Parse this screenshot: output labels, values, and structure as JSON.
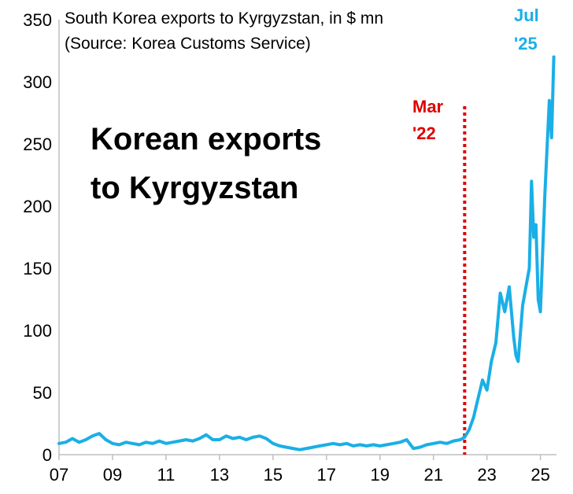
{
  "chart_data": {
    "type": "line",
    "subtitle_lines": [
      "South Korea exports to Kyrgyzstan, in $ mn",
      "(Source: Korea Customs Service)"
    ],
    "headline_lines": [
      "Korean exports",
      "to Kyrgyzstan"
    ],
    "xlabel": "",
    "ylabel": "",
    "y_ticks": [
      0,
      50,
      100,
      150,
      200,
      250,
      300,
      350
    ],
    "x_ticks": [
      "07",
      "09",
      "11",
      "13",
      "15",
      "17",
      "19",
      "21",
      "23",
      "25"
    ],
    "ylim": [
      0,
      350
    ],
    "grid": false,
    "legend": "none",
    "series_color": "#1AAFE6",
    "marker": {
      "date": "2022-03",
      "label_lines": [
        "Mar",
        "'22"
      ],
      "color": "#E00000",
      "style": "dotted"
    },
    "end_label": {
      "label_lines": [
        "Jul",
        "'25"
      ],
      "color": "#1AAFE6"
    },
    "series": [
      {
        "x": [
          "2007-01",
          "2007-04",
          "2007-07",
          "2007-10",
          "2008-01",
          "2008-04",
          "2008-07",
          "2008-10",
          "2009-01",
          "2009-04",
          "2009-07",
          "2009-10",
          "2010-01",
          "2010-04",
          "2010-07",
          "2010-10",
          "2011-01",
          "2011-04",
          "2011-07",
          "2011-10",
          "2012-01",
          "2012-04",
          "2012-07",
          "2012-10",
          "2013-01",
          "2013-04",
          "2013-07",
          "2013-10",
          "2014-01",
          "2014-04",
          "2014-07",
          "2014-10",
          "2015-01",
          "2015-04",
          "2015-07",
          "2015-10",
          "2016-01",
          "2016-04",
          "2016-07",
          "2016-10",
          "2017-01",
          "2017-04",
          "2017-07",
          "2017-10",
          "2018-01",
          "2018-04",
          "2018-07",
          "2018-10",
          "2019-01",
          "2019-04",
          "2019-07",
          "2019-10",
          "2020-01",
          "2020-04",
          "2020-07",
          "2020-10",
          "2021-01",
          "2021-04",
          "2021-07",
          "2021-10",
          "2022-01",
          "2022-03",
          "2022-05",
          "2022-07",
          "2022-09",
          "2022-11",
          "2023-01",
          "2023-03",
          "2023-05",
          "2023-07",
          "2023-09",
          "2023-11",
          "2024-01",
          "2024-02",
          "2024-03",
          "2024-05",
          "2024-07",
          "2024-08",
          "2024-09",
          "2024-10",
          "2024-11",
          "2024-12",
          "2025-01",
          "2025-03",
          "2025-05",
          "2025-06",
          "2025-07"
        ],
        "y": [
          9,
          10,
          13,
          10,
          12,
          15,
          17,
          12,
          9,
          8,
          10,
          9,
          8,
          10,
          9,
          11,
          9,
          10,
          11,
          12,
          11,
          13,
          16,
          12,
          12,
          15,
          13,
          14,
          12,
          14,
          15,
          13,
          9,
          7,
          6,
          5,
          4,
          5,
          6,
          7,
          8,
          9,
          8,
          9,
          7,
          8,
          7,
          8,
          7,
          8,
          9,
          10,
          12,
          5,
          6,
          8,
          9,
          10,
          9,
          11,
          12,
          14,
          20,
          30,
          45,
          60,
          52,
          75,
          90,
          130,
          115,
          135,
          95,
          80,
          75,
          120,
          140,
          150,
          220,
          175,
          185,
          125,
          115,
          210,
          285,
          255,
          320
        ]
      }
    ]
  }
}
